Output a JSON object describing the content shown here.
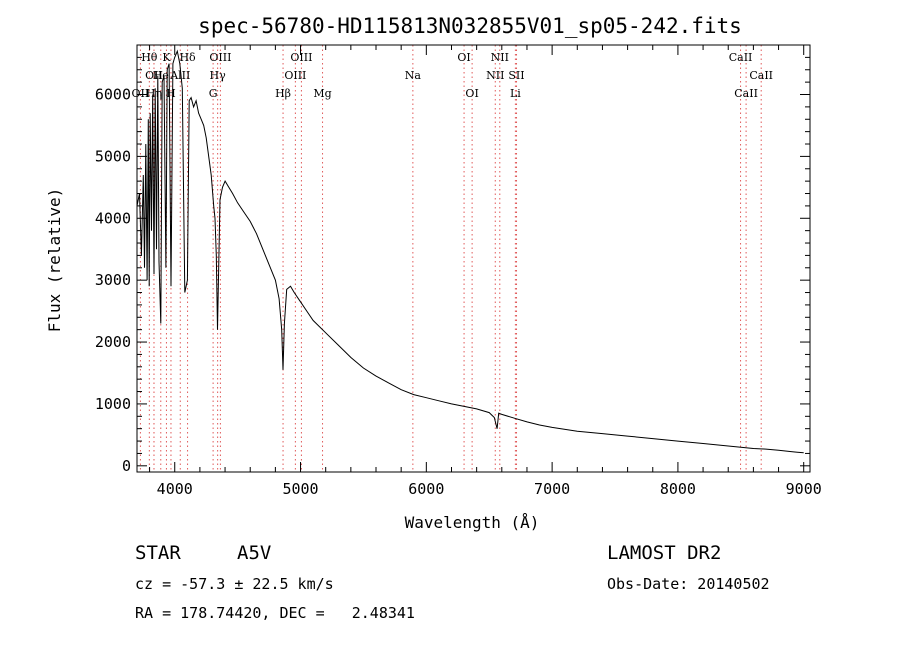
{
  "chart_data": {
    "type": "line",
    "title": "spec-56780-HD115813N032855V01_sp05-242.fits",
    "xlabel": "Wavelength (Å)",
    "ylabel": "Flux (relative)",
    "xlim": [
      3700,
      9050
    ],
    "ylim": [
      -100,
      6800
    ],
    "xticks": [
      4000,
      5000,
      6000,
      7000,
      8000,
      9000
    ],
    "yticks": [
      0,
      1000,
      2000,
      3000,
      4000,
      5000,
      6000
    ],
    "series": [
      {
        "name": "spectrum",
        "x": [
          3700,
          3720,
          3735,
          3750,
          3760,
          3770,
          3780,
          3790,
          3797,
          3805,
          3815,
          3825,
          3835,
          3845,
          3855,
          3865,
          3875,
          3889,
          3900,
          3915,
          3930,
          3933,
          3940,
          3955,
          3970,
          3985,
          4000,
          4020,
          4040,
          4060,
          4080,
          4101,
          4115,
          4130,
          4150,
          4170,
          4190,
          4210,
          4230,
          4250,
          4270,
          4290,
          4310,
          4320,
          4330,
          4340,
          4350,
          4360,
          4380,
          4400,
          4430,
          4460,
          4500,
          4550,
          4600,
          4650,
          4700,
          4750,
          4800,
          4830,
          4850,
          4861,
          4872,
          4890,
          4920,
          4950,
          5000,
          5050,
          5100,
          5150,
          5200,
          5300,
          5400,
          5500,
          5600,
          5700,
          5800,
          5900,
          6000,
          6100,
          6200,
          6300,
          6400,
          6500,
          6540,
          6563,
          6575,
          6600,
          6700,
          6800,
          6900,
          7000,
          7200,
          7400,
          7600,
          7800,
          8000,
          8200,
          8400,
          8500,
          8600,
          8700,
          8800,
          8900,
          8950,
          9000
        ],
        "y": [
          4200,
          4400,
          3400,
          4700,
          3200,
          5200,
          3000,
          5600,
          2900,
          5700,
          3800,
          6000,
          3100,
          6100,
          3500,
          6300,
          3300,
          2300,
          6200,
          6300,
          3200,
          4100,
          6400,
          6500,
          2900,
          6500,
          6600,
          6700,
          6500,
          6100,
          2800,
          3000,
          5900,
          5950,
          5800,
          5900,
          5700,
          5600,
          5500,
          5300,
          5000,
          4700,
          4200,
          4000,
          3400,
          2200,
          3300,
          4300,
          4500,
          4600,
          4500,
          4400,
          4250,
          4100,
          3950,
          3750,
          3500,
          3250,
          3000,
          2700,
          2200,
          1550,
          2300,
          2850,
          2900,
          2800,
          2650,
          2500,
          2350,
          2250,
          2150,
          1950,
          1750,
          1580,
          1450,
          1340,
          1230,
          1150,
          1100,
          1050,
          1000,
          960,
          920,
          860,
          780,
          600,
          850,
          830,
          770,
          710,
          660,
          620,
          560,
          520,
          480,
          440,
          400,
          360,
          320,
          300,
          280,
          270,
          250,
          230,
          220,
          210
        ]
      }
    ],
    "lines": [
      {
        "name": "OII",
        "x": 3727,
        "row": 3
      },
      {
        "name": "Hθ",
        "x": 3798,
        "row": 1
      },
      {
        "name": "OII",
        "x": 3835,
        "row": 2
      },
      {
        "name": "Hη",
        "x": 3835,
        "row": 3
      },
      {
        "name": "He",
        "x": 3889,
        "row": 2
      },
      {
        "name": "K",
        "x": 3934,
        "row": 1
      },
      {
        "name": "H",
        "x": 3970,
        "row": 3
      },
      {
        "name": "AlII",
        "x": 4044,
        "row": 2
      },
      {
        "name": "Hδ",
        "x": 4102,
        "row": 1
      },
      {
        "name": "OIII",
        "x": 4363,
        "row": 1
      },
      {
        "name": "Hγ",
        "x": 4341,
        "row": 2
      },
      {
        "name": "G",
        "x": 4305,
        "row": 3
      },
      {
        "name": "Hβ",
        "x": 4861,
        "row": 3
      },
      {
        "name": "OIII",
        "x": 4959,
        "row": 2
      },
      {
        "name": "OIII",
        "x": 5007,
        "row": 1
      },
      {
        "name": "Mg",
        "x": 5175,
        "row": 3
      },
      {
        "name": "Na",
        "x": 5893,
        "row": 2
      },
      {
        "name": "OI",
        "x": 6300,
        "row": 1
      },
      {
        "name": "OI",
        "x": 6364,
        "row": 3
      },
      {
        "name": "NII",
        "x": 6548,
        "row": 2
      },
      {
        "name": "NII",
        "x": 6584,
        "row": 1
      },
      {
        "name": "SII",
        "x": 6717,
        "row": 2
      },
      {
        "name": "Li",
        "x": 6708,
        "row": 3
      },
      {
        "name": "CaII",
        "x": 8498,
        "row": 1
      },
      {
        "name": "CaII",
        "x": 8542,
        "row": 3
      },
      {
        "name": "CaII",
        "x": 8662,
        "row": 2
      }
    ]
  },
  "footer": {
    "object_class": "STAR",
    "subclass": "A5V",
    "survey": "LAMOST DR2",
    "redshift": "cz = -57.3 ± 22.5 km/s",
    "obs_date": "Obs-Date: 20140502",
    "coords": "RA = 178.74420, DEC =   2.48341"
  },
  "colors": {
    "line": "#000000",
    "marker": "#e05a5a"
  }
}
